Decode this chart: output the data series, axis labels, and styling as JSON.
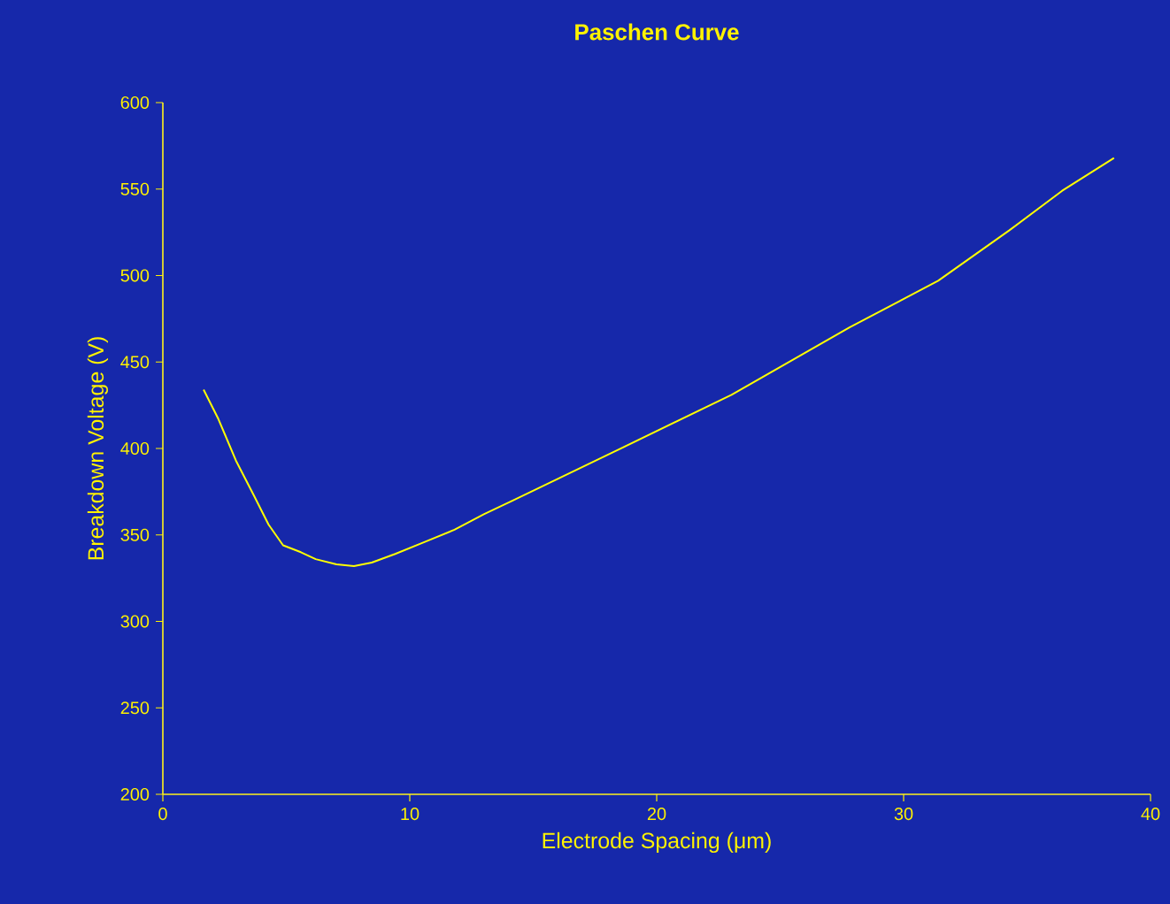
{
  "chart_data": {
    "type": "line",
    "title": "Paschen Curve",
    "xlabel": "Electrode Spacing (μm)",
    "ylabel": "Breakdown Voltage (V)",
    "xlim": [
      0,
      40
    ],
    "ylim": [
      200,
      600
    ],
    "xticks": [
      0,
      10,
      20,
      30,
      40
    ],
    "yticks": [
      200,
      250,
      300,
      350,
      400,
      450,
      500,
      550,
      600
    ],
    "grid": false,
    "marker": "none",
    "line_style": "solid",
    "series": [
      {
        "color": "#ffff00",
        "x": [
          1.65,
          2.25,
          2.96,
          3.68,
          4.28,
          4.87,
          5.59,
          6.19,
          7.03,
          7.74,
          8.46,
          9.41,
          10.61,
          11.81,
          13.0,
          14.19,
          18.26,
          23.03,
          27.81,
          31.4,
          34.27,
          36.42,
          38.52
        ],
        "values": [
          434,
          417,
          393,
          373,
          356,
          344,
          340,
          336,
          333,
          332,
          334,
          339,
          346,
          353,
          362,
          370,
          398,
          431,
          470,
          497,
          526,
          549,
          568
        ]
      }
    ]
  }
}
